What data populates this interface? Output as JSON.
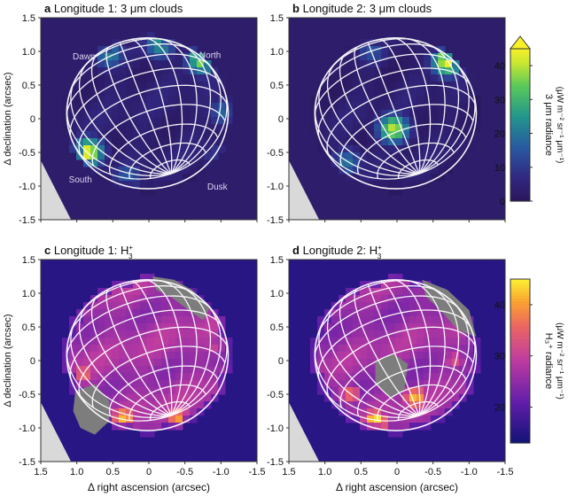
{
  "chart_data": [
    {
      "type": "heatmap",
      "panel_letter": "a",
      "title": "Longitude 1: 3 μm clouds",
      "xlabel": "",
      "ylabel": "Δ declination (arcsec)",
      "xlim": [
        1.5,
        -1.5
      ],
      "ylim": [
        -1.5,
        1.5
      ],
      "xticks": [
        "1.5",
        "1.0",
        "0.5",
        "0",
        "-0.5",
        "-1.0",
        "-1.5"
      ],
      "yticks": [
        "1.5",
        "1.0",
        "0.5",
        "0",
        "-0.5",
        "-1.0",
        "-1.5"
      ],
      "grid_overlay": "planetary latitude/longitude grid",
      "annotations": [
        {
          "text": "Dawn",
          "x": 0.9,
          "y": 0.88
        },
        {
          "text": "North",
          "x": -0.85,
          "y": 0.9
        },
        {
          "text": "South",
          "x": 0.95,
          "y": -0.95
        },
        {
          "text": "Dusk",
          "x": -0.95,
          "y": -1.05
        }
      ],
      "bright_regions": [
        {
          "x": 0.85,
          "y": -0.5,
          "value": 45
        },
        {
          "x": -0.75,
          "y": 0.88,
          "value": 40
        },
        {
          "x": -0.15,
          "y": 1.1,
          "value": 25
        },
        {
          "x": 0.55,
          "y": 0.95,
          "value": 22
        },
        {
          "x": -1.05,
          "y": 0.1,
          "value": 18
        },
        {
          "x": -1.0,
          "y": -0.6,
          "value": 18
        },
        {
          "x": 0.3,
          "y": -0.85,
          "value": 16
        }
      ]
    },
    {
      "type": "heatmap",
      "panel_letter": "b",
      "title": "Longitude 2: 3 μm clouds",
      "xlabel": "",
      "ylabel": "",
      "xlim": [
        1.5,
        -1.5
      ],
      "ylim": [
        -1.5,
        1.5
      ],
      "xticks": [
        "1.5",
        "1.0",
        "0.5",
        "0",
        "-0.5",
        "-1.0",
        "-1.5"
      ],
      "yticks": [
        "1.5",
        "1.0",
        "0.5",
        "0",
        "-0.5",
        "-1.0",
        "-1.5"
      ],
      "grid_overlay": "planetary latitude/longitude grid",
      "bright_regions": [
        {
          "x": 0.05,
          "y": -0.15,
          "value": 40
        },
        {
          "x": -0.7,
          "y": 0.85,
          "value": 45
        },
        {
          "x": 0.7,
          "y": -0.65,
          "value": 20
        },
        {
          "x": 0.35,
          "y": 1.0,
          "value": 15
        }
      ]
    },
    {
      "type": "heatmap",
      "panel_letter": "c",
      "title": "Longitude 1: H",
      "xlabel": "Δ right ascension (arcsec)",
      "ylabel": "Δ declination (arcsec)",
      "xlim": [
        1.5,
        -1.5
      ],
      "ylim": [
        -1.5,
        1.5
      ],
      "xticks": [
        "1.5",
        "1.0",
        "0.5",
        "0",
        "-0.5",
        "-1.0",
        "-1.5"
      ],
      "yticks": [
        "1.5",
        "1.0",
        "0.5",
        "0",
        "-0.5",
        "-1.0",
        "-1.5"
      ],
      "grid_overlay": "planetary latitude/longitude grid",
      "masked_regions": [
        "south polar region (grey)",
        "north-east limb (grey)"
      ],
      "bright_regions": [
        {
          "x": 0.35,
          "y": -0.85,
          "value": 42
        },
        {
          "x": -0.4,
          "y": -0.85,
          "value": 40
        },
        {
          "x": 0.9,
          "y": -0.2,
          "value": 36
        },
        {
          "x": -0.9,
          "y": 0.2,
          "value": 30
        }
      ]
    },
    {
      "type": "heatmap",
      "panel_letter": "d",
      "title": "Longitude 2: H",
      "xlabel": "Δ right ascension (arcsec)",
      "ylabel": "",
      "xlim": [
        1.5,
        -1.5
      ],
      "ylim": [
        -1.5,
        1.5
      ],
      "xticks": [
        "1.5",
        "1.0",
        "0.5",
        "0",
        "-0.5",
        "-1.0",
        "-1.5"
      ],
      "yticks": [
        "1.5",
        "1.0",
        "0.5",
        "0",
        "-0.5",
        "-1.0",
        "-1.5"
      ],
      "grid_overlay": "planetary latitude/longitude grid",
      "masked_regions": [
        "central region (grey)",
        "north-east limb (grey)"
      ],
      "bright_regions": [
        {
          "x": 0.3,
          "y": -0.9,
          "value": 45
        },
        {
          "x": -0.25,
          "y": -0.55,
          "value": 42
        },
        {
          "x": 0.65,
          "y": -0.5,
          "value": 36
        },
        {
          "x": -0.8,
          "y": 0.0,
          "value": 32
        }
      ]
    }
  ],
  "colorbars": [
    {
      "label": "3 μm radiance",
      "unit": "(μW m⁻² sr⁻¹ μm⁻¹)",
      "ticks": [
        "0",
        "10",
        "20",
        "30",
        "40"
      ],
      "range": [
        0,
        45
      ],
      "extend": "max",
      "colormap": "viridis-like (dark blue → green → yellow)"
    },
    {
      "label": "H₃⁺ radiance",
      "unit": "(μW m⁻² sr⁻¹ μm⁻¹)",
      "ticks": [
        "20",
        "30",
        "40"
      ],
      "range": [
        13,
        45
      ],
      "colormap": "plasma-like (blue → purple → orange → yellow)"
    }
  ],
  "sup_label": "+",
  "sub_label": "3"
}
